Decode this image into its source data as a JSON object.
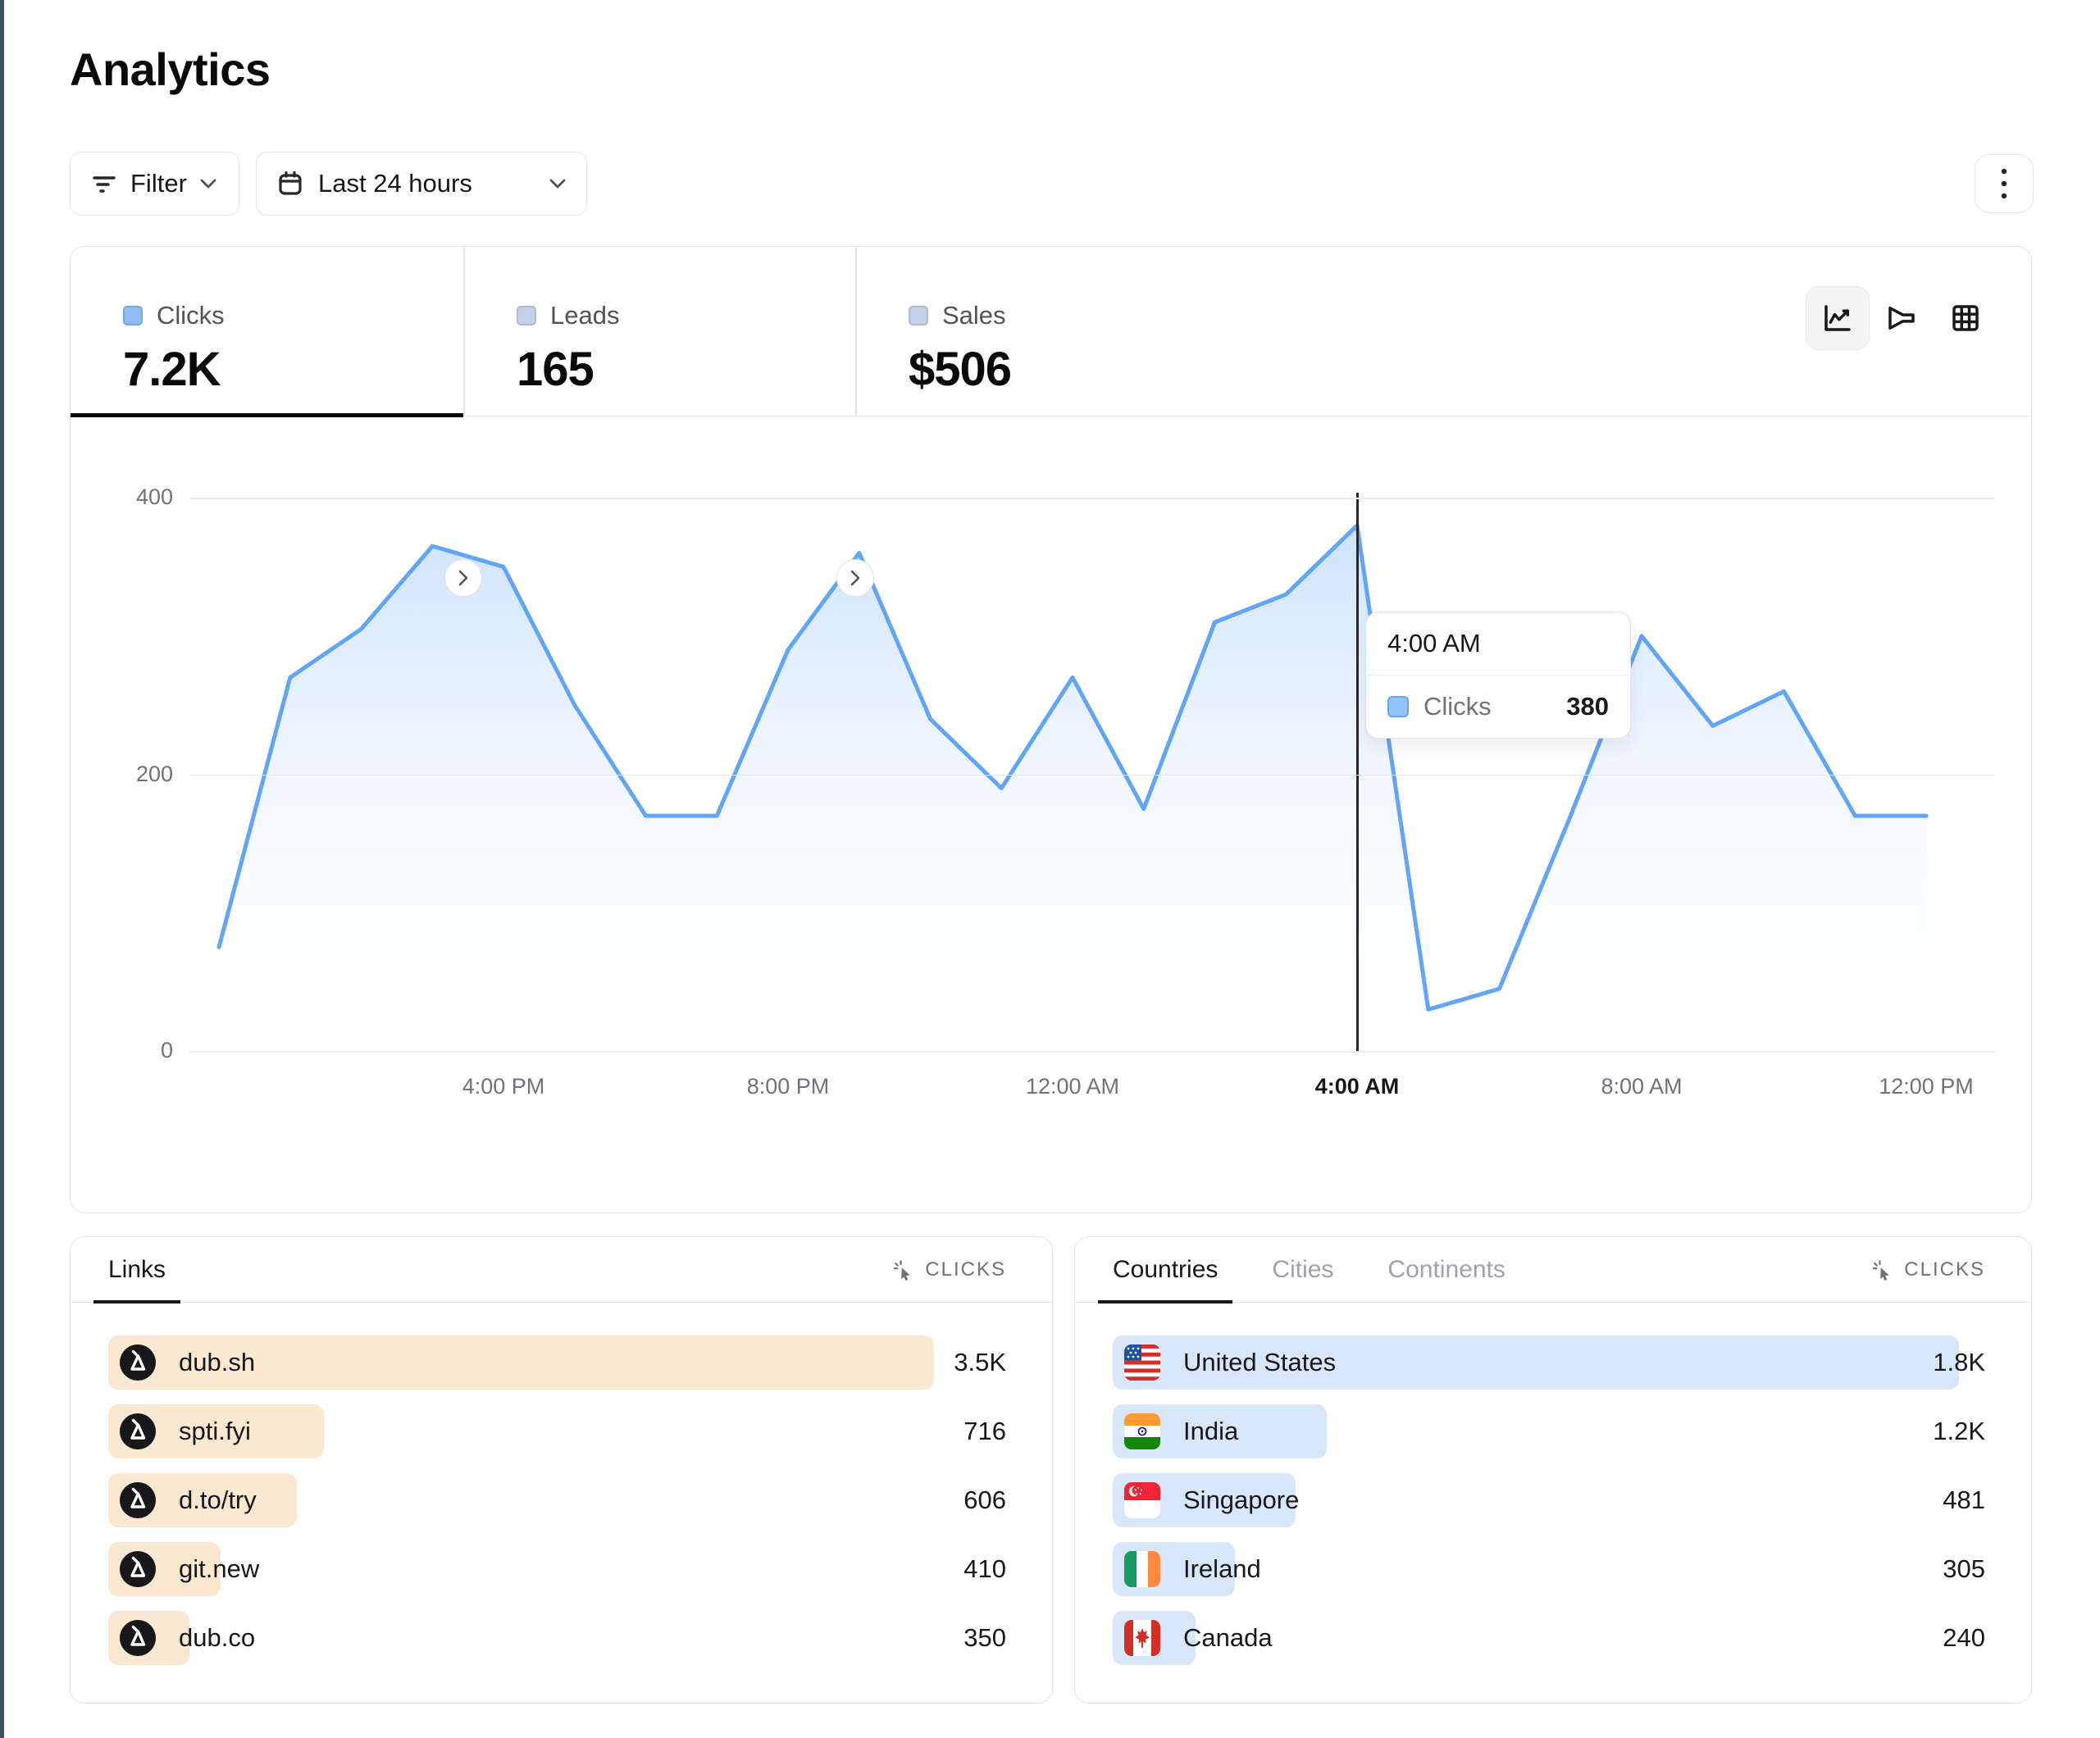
{
  "page": {
    "title": "Analytics"
  },
  "toolbar": {
    "filter": {
      "label": "Filter"
    },
    "date_range": {
      "label": "Last 24 hours"
    }
  },
  "metric_tabs": [
    {
      "label": "Clicks",
      "value": "7.2K",
      "active": true
    },
    {
      "label": "Leads",
      "value": "165",
      "active": false
    },
    {
      "label": "Sales",
      "value": "$506",
      "active": false
    }
  ],
  "view_switcher": {
    "icons": [
      "line-chart",
      "funnel",
      "table-grid"
    ],
    "active": "line-chart"
  },
  "chart_data": {
    "type": "area",
    "series_name": "Clicks",
    "x": [
      "12:00 PM",
      "1:00 PM",
      "2:00 PM",
      "3:00 PM",
      "4:00 PM",
      "5:00 PM",
      "6:00 PM",
      "7:00 PM",
      "8:00 PM",
      "9:00 PM",
      "10:00 PM",
      "11:00 PM",
      "12:00 AM",
      "1:00 AM",
      "2:00 AM",
      "3:00 AM",
      "4:00 AM",
      "5:00 AM",
      "6:00 AM",
      "7:00 AM",
      "8:00 AM",
      "9:00 AM",
      "10:00 AM",
      "11:00 AM",
      "12:00 PM"
    ],
    "values": [
      75,
      270,
      305,
      365,
      350,
      250,
      170,
      170,
      290,
      360,
      240,
      190,
      270,
      175,
      310,
      330,
      380,
      30,
      45,
      170,
      300,
      235,
      260,
      170,
      170
    ],
    "ylim": [
      0,
      400
    ],
    "y_ticks": [
      400,
      200,
      0
    ],
    "x_tick_labels": [
      "4:00 PM",
      "8:00 PM",
      "12:00 AM",
      "4:00 AM",
      "8:00 AM",
      "12:00 PM"
    ],
    "x_tick_indices": [
      4,
      8,
      12,
      16,
      20,
      24
    ],
    "highlighted_tick": "4:00 AM",
    "hover_index": 16,
    "grid": "horizontal",
    "legend_position": "none",
    "line_color": "#60a5fa",
    "tooltip": {
      "title": "4:00 AM",
      "rows": [
        {
          "label": "Clicks",
          "value": "380"
        }
      ]
    }
  },
  "links_panel": {
    "tabs": [
      {
        "label": "Links",
        "active": true
      }
    ],
    "sort_header": {
      "label": "CLICKS",
      "icon": "cursor-click-icon"
    },
    "bar_color": "#fae8d0",
    "rows": [
      {
        "label": "dub.sh",
        "value": "3.5K",
        "bar_pct": 92,
        "icon": "dub-logo"
      },
      {
        "label": "spti.fyi",
        "value": "716",
        "bar_pct": 24,
        "icon": "dub-logo"
      },
      {
        "label": "d.to/try",
        "value": "606",
        "bar_pct": 21,
        "icon": "dub-logo"
      },
      {
        "label": "git.new",
        "value": "410",
        "bar_pct": 12.5,
        "icon": "dub-logo"
      },
      {
        "label": "dub.co",
        "value": "350",
        "bar_pct": 9,
        "icon": "dub-logo"
      }
    ]
  },
  "countries_panel": {
    "tabs": [
      {
        "label": "Countries",
        "active": true
      },
      {
        "label": "Cities",
        "active": false
      },
      {
        "label": "Continents",
        "active": false
      }
    ],
    "sort_header": {
      "label": "CLICKS",
      "icon": "cursor-click-icon"
    },
    "bar_color": "#d8e6fa",
    "rows": [
      {
        "label": "United States",
        "value": "1.8K",
        "bar_pct": 97,
        "flag": "us"
      },
      {
        "label": "India",
        "value": "1.2K",
        "bar_pct": 24.5,
        "flag": "in"
      },
      {
        "label": "Singapore",
        "value": "481",
        "bar_pct": 21,
        "flag": "sg"
      },
      {
        "label": "Ireland",
        "value": "305",
        "bar_pct": 14,
        "flag": "ie"
      },
      {
        "label": "Canada",
        "value": "240",
        "bar_pct": 9.5,
        "flag": "ca"
      }
    ]
  },
  "colors": {
    "accent_blue": "#60a5fa",
    "area_fill_top": "#bfdbfe",
    "links_bar": "#fae8d0",
    "countries_bar": "#d8e6fa",
    "active_indicator": "#09090b",
    "left_strip": "#3f525a",
    "border": "#e4e4e7",
    "muted_text": "#71717a"
  }
}
